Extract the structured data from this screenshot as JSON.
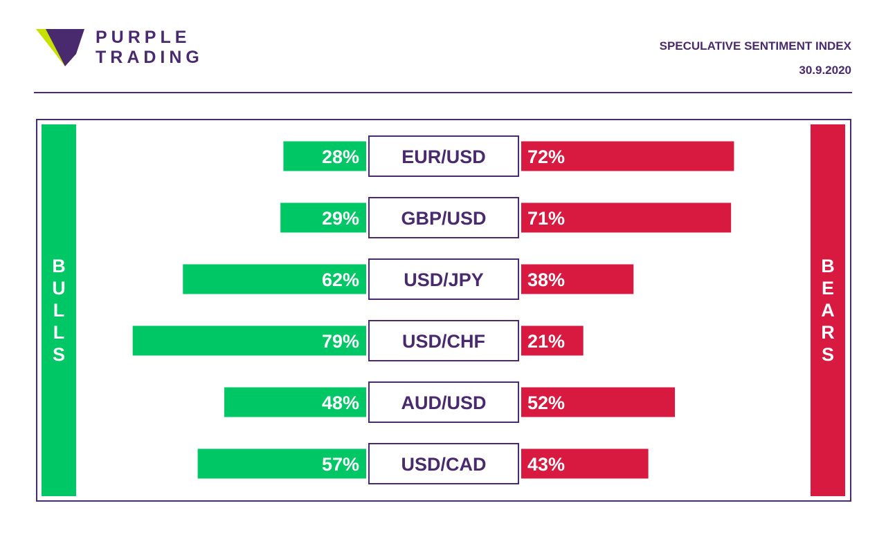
{
  "brand": {
    "line1": "PURPLE",
    "line2": "TRADING",
    "colors": {
      "purple": "#4a2a6e",
      "lime": "#c8e000"
    }
  },
  "header": {
    "title": "SPECULATIVE SENTIMENT INDEX",
    "date": "30.9.2020"
  },
  "side_labels": {
    "left": "BULLS",
    "right": "BEARS"
  },
  "chart_data": {
    "type": "bar",
    "categories": [
      "EUR/USD",
      "GBP/USD",
      "USD/JPY",
      "USD/CHF",
      "AUD/USD",
      "USD/CAD"
    ],
    "series": [
      {
        "name": "BULLS",
        "values": [
          28,
          29,
          62,
          79,
          48,
          57
        ],
        "color": "#00c765"
      },
      {
        "name": "BEARS",
        "values": [
          72,
          71,
          38,
          21,
          52,
          43
        ],
        "color": "#d81a40"
      }
    ],
    "value_labels": {
      "BULLS": [
        "28%",
        "29%",
        "62%",
        "79%",
        "48%",
        "57%"
      ],
      "BEARS": [
        "72%",
        "71%",
        "38%",
        "21%",
        "52%",
        "43%"
      ]
    },
    "unit": "%",
    "legend": "none",
    "grid": false
  }
}
